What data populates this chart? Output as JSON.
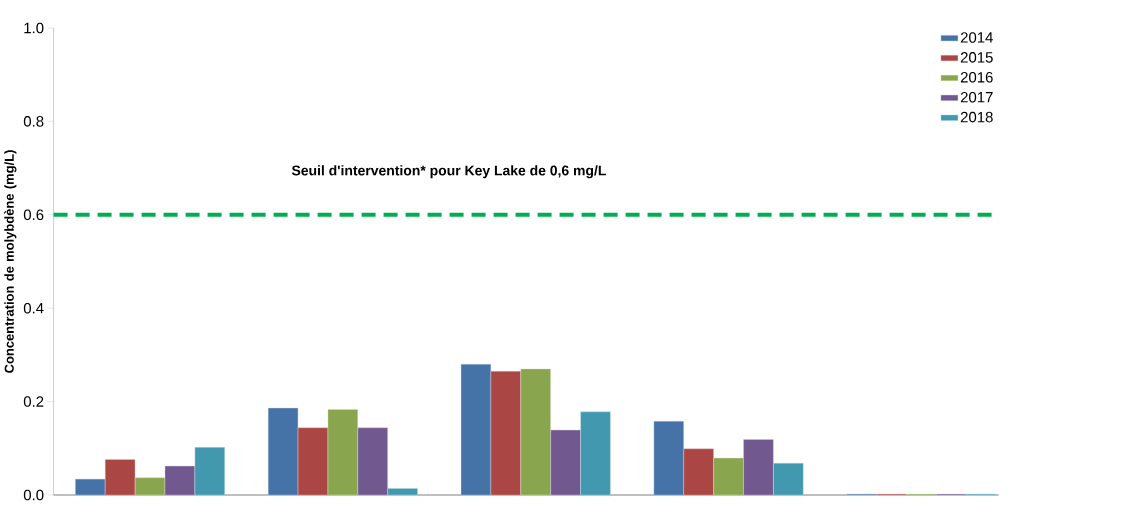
{
  "chart_data": {
    "type": "bar",
    "ylabel": "Concentration de molybdène (mg/L)",
    "categories": [
      null,
      null,
      null,
      null,
      null
    ],
    "series": [
      {
        "name": "2014",
        "color": "#4572a7",
        "values": [
          0.034,
          0.186,
          0.28,
          0.158,
          0.002
        ]
      },
      {
        "name": "2015",
        "color": "#aa4643",
        "values": [
          0.076,
          0.144,
          0.265,
          0.099,
          0.002
        ]
      },
      {
        "name": "2016",
        "color": "#89a54e",
        "values": [
          0.037,
          0.183,
          0.27,
          0.079,
          0.002
        ]
      },
      {
        "name": "2017",
        "color": "#71588f",
        "values": [
          0.062,
          0.144,
          0.139,
          0.119,
          0.002
        ]
      },
      {
        "name": "2018",
        "color": "#4198af",
        "values": [
          0.102,
          0.014,
          0.178,
          0.068,
          0.002
        ]
      }
    ],
    "ylim": [
      0,
      1.0
    ],
    "yticks": [
      {
        "value": 0,
        "label": "0.0"
      },
      {
        "value": 0.2,
        "label": "0.2"
      },
      {
        "value": 0.4,
        "label": "0.4"
      },
      {
        "value": 0.6,
        "label": "0.6"
      },
      {
        "value": 0.8,
        "label": "0.8"
      },
      {
        "value": 1.0,
        "label": "1.0"
      }
    ],
    "ref_lines": [
      {
        "axis": "y",
        "value": 0.6,
        "label": "Seuil d'intervention* pour Key Lake de 0,6 mg/L",
        "color": "#00b050",
        "line_style": "dashed"
      }
    ],
    "legend": "top right",
    "tick_labels": "y",
    "grid": false
  }
}
